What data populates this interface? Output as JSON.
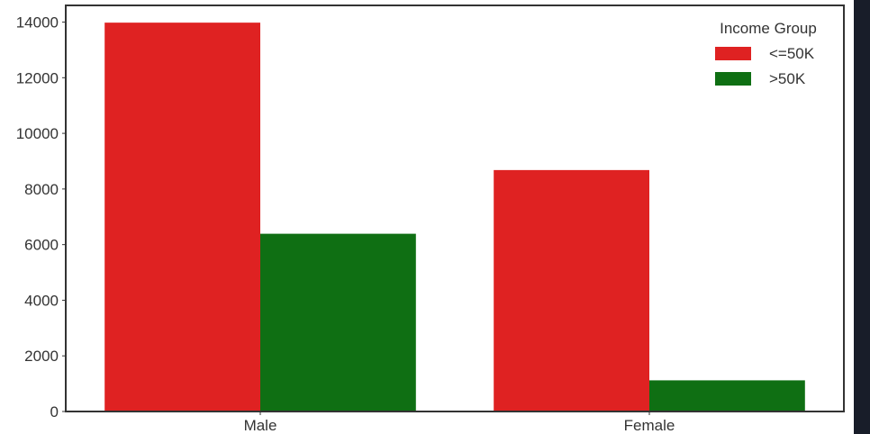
{
  "chart_data": {
    "type": "bar",
    "categories": [
      "Male",
      "Female"
    ],
    "series": [
      {
        "name": "<=50K",
        "color": "#df2222",
        "values": [
          13980,
          8680
        ]
      },
      {
        "name": ">50K",
        "color": "#0f6f13",
        "values": [
          6390,
          1120
        ]
      }
    ],
    "title": "",
    "xlabel": "",
    "ylabel": "",
    "ylim": [
      0,
      14600
    ],
    "yticks": [
      0,
      2000,
      4000,
      6000,
      8000,
      10000,
      12000,
      14000
    ],
    "ytick_labels": [
      "0",
      "2000",
      "4000",
      "6000",
      "8000",
      "10000",
      "12000",
      "14000"
    ],
    "grid": false,
    "legend": {
      "title": "Income Group",
      "position": "top-right"
    }
  },
  "colors": {
    "background": "#ffffff",
    "frame": "#333333",
    "text": "#333333",
    "sidebar": "#181d29"
  }
}
